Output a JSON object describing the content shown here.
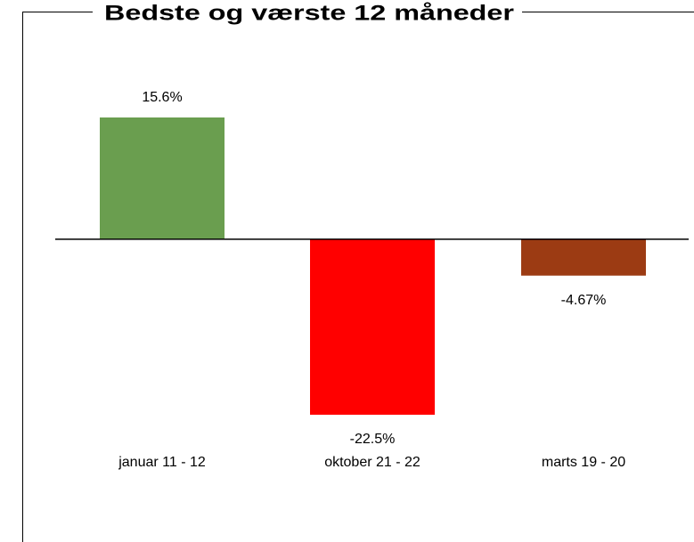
{
  "chart_data": {
    "type": "bar",
    "title": "Bedste og værste 12 måneder",
    "categories": [
      "januar 11 - 12",
      "oktober 21 - 22",
      "marts 19 - 20"
    ],
    "values": [
      15.6,
      -22.5,
      -4.67
    ],
    "value_labels": [
      "15.6%",
      "-22.5%",
      "-4.67%"
    ],
    "colors": [
      "#6a9e4f",
      "#ff0000",
      "#9c3b13"
    ]
  }
}
